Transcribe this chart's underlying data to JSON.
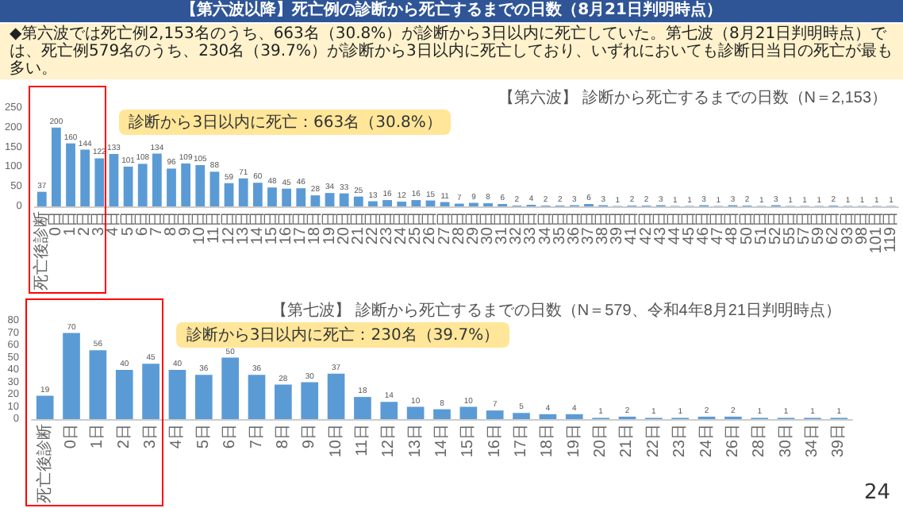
{
  "chart_data": [
    {
      "type": "other",
      "title": "【第六波以降】死亡例の診断から死亡するまでの日数（8月21日判明時点）",
      "subtitle": "◆第六波では死亡例2,153名のうち、663名（30.8%）が診断から3日以内に死亡していた。第七波（8月21日判明時点）では、死亡例579名のうち、230名（39.7%）が診断から3日以内に死亡しており、いずれにおいても診断日当日の死亡が最も多い。",
      "annotations": [
        "24"
      ]
    },
    {
      "type": "bar",
      "title": "【第六波】 診断から死亡するまでの日数（N＝2,153）",
      "annotations": [
        "診断から3日以内に死亡：663名（30.8%）"
      ],
      "categories": [
        "死亡後診断",
        "0日",
        "1日",
        "2日",
        "3日",
        "4日",
        "5日",
        "6日",
        "7日",
        "8日",
        "9日",
        "10日",
        "11日",
        "12日",
        "13日",
        "14日",
        "15日",
        "16日",
        "17日",
        "18日",
        "19日",
        "20日",
        "21日",
        "22日",
        "23日",
        "24日",
        "25日",
        "26日",
        "27日",
        "28日",
        "29日",
        "30日",
        "31日",
        "32日",
        "33日",
        "34日",
        "35日",
        "36日",
        "37日",
        "38日",
        "39日",
        "41日",
        "42日",
        "43日",
        "44日",
        "45日",
        "46日",
        "47日",
        "48日",
        "50日",
        "51日",
        "52日",
        "55日",
        "57日",
        "59日",
        "62日",
        "93日",
        "98日",
        "101日",
        "119日"
      ],
      "values": [
        37,
        200,
        160,
        144,
        122,
        133,
        101,
        108,
        134,
        96,
        109,
        105,
        88,
        59,
        71,
        60,
        48,
        45,
        46,
        28,
        34,
        33,
        25,
        13,
        16,
        12,
        16,
        15,
        11,
        7,
        9,
        8,
        6,
        2,
        4,
        2,
        2,
        3,
        6,
        3,
        1,
        2,
        2,
        3,
        1,
        1,
        3,
        1,
        3,
        2,
        1,
        3,
        1,
        1,
        1,
        2,
        1,
        1,
        1,
        1
      ],
      "color": "#5b9bd5",
      "ylim": [
        0,
        250
      ],
      "yticks": [
        0,
        50,
        100,
        150,
        200,
        250
      ],
      "data_labels": true
    },
    {
      "type": "bar",
      "title": "【第七波】 診断から死亡するまでの日数（N＝579、令和4年8月21日判明時点）",
      "annotations": [
        "診断から3日以内に死亡：230名（39.7%）"
      ],
      "categories": [
        "死亡後診断",
        "0日",
        "1日",
        "2日",
        "3日",
        "4日",
        "5日",
        "6日",
        "7日",
        "8日",
        "9日",
        "10日",
        "11日",
        "12日",
        "13日",
        "14日",
        "15日",
        "16日",
        "17日",
        "18日",
        "19日",
        "20日",
        "21日",
        "22日",
        "23日",
        "24日",
        "26日",
        "28日",
        "30日",
        "34日",
        "39日"
      ],
      "values": [
        19,
        70,
        56,
        40,
        45,
        40,
        36,
        50,
        36,
        28,
        30,
        37,
        18,
        14,
        10,
        8,
        10,
        7,
        5,
        4,
        4,
        1,
        2,
        1,
        1,
        2,
        2,
        1,
        1,
        1,
        1
      ],
      "color": "#5b9bd5",
      "ylim": [
        0,
        80
      ],
      "yticks": [
        0,
        10,
        20,
        30,
        40,
        50,
        60,
        70,
        80
      ],
      "data_labels": true
    }
  ]
}
